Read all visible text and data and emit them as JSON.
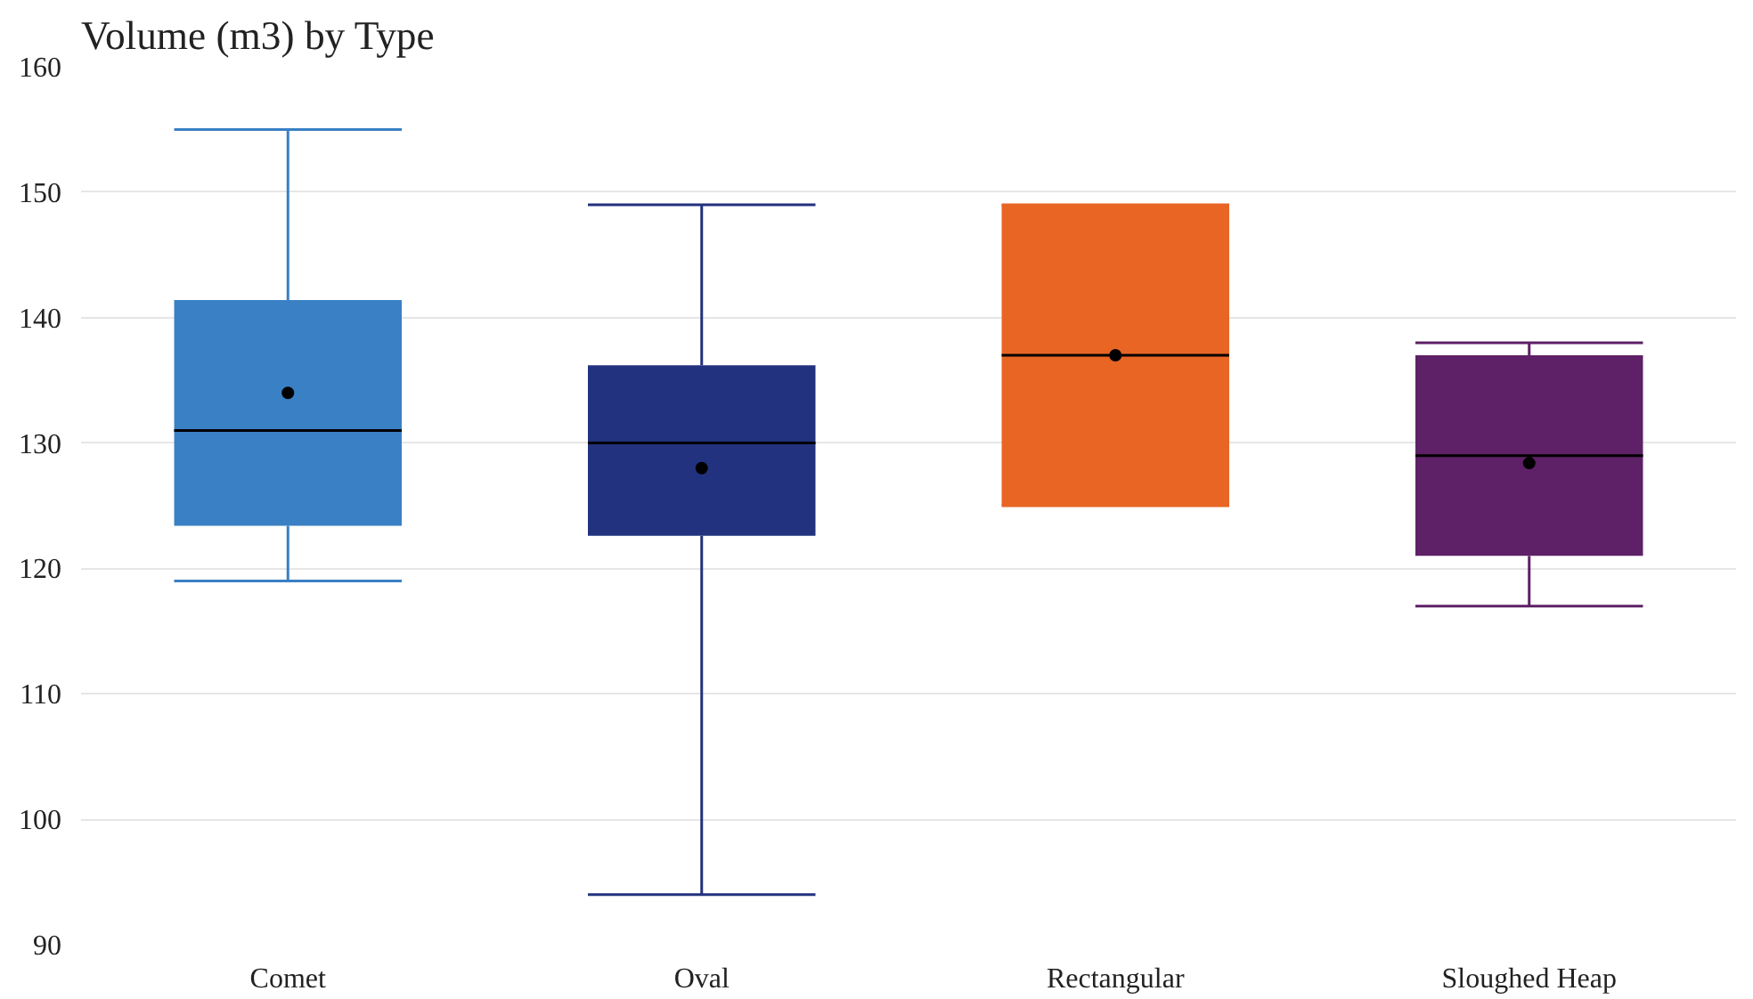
{
  "chart_data": {
    "type": "box",
    "title": "Volume (m3) by Type",
    "categories": [
      "Comet",
      "Oval",
      "Rectangular",
      "Sloughed Heap"
    ],
    "colors": [
      "#3a80c4",
      "#22327e",
      "#e86524",
      "#5e2066"
    ],
    "boxes": [
      {
        "low": 119,
        "q1": 123.4,
        "median": 131,
        "q3": 141.4,
        "high": 155,
        "mean": 134
      },
      {
        "low": 94,
        "q1": 122.6,
        "median": 130,
        "q3": 136.2,
        "high": 149,
        "mean": 128
      },
      {
        "low": 125,
        "q1": 125,
        "median": 137,
        "q3": 149,
        "high": 149,
        "mean": 137
      },
      {
        "low": 117,
        "q1": 121,
        "median": 129,
        "q3": 137,
        "high": 138,
        "mean": 128.4
      }
    ],
    "ylim": [
      90,
      160
    ],
    "yticks": [
      90,
      100,
      110,
      120,
      130,
      140,
      150,
      160
    ],
    "grid": "y"
  }
}
